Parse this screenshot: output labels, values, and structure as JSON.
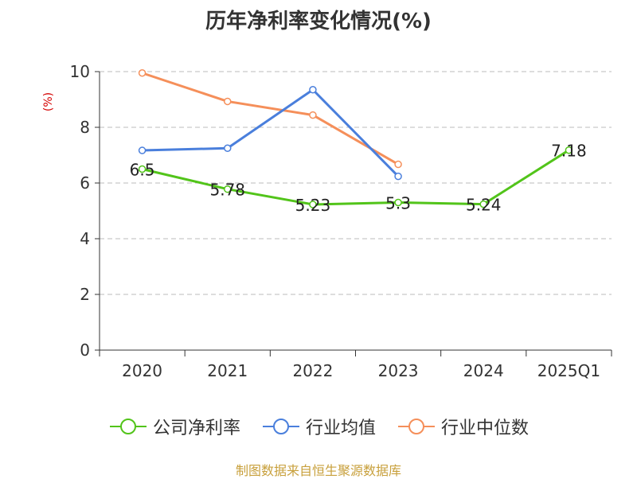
{
  "title": "历年净利率变化情况(%)",
  "footer": "制图数据来自恒生聚源数据库",
  "chart_data": {
    "type": "line",
    "title": "历年净利率变化情况(%)",
    "ylabel": "(%)",
    "xlabel": "",
    "categories": [
      "2020",
      "2021",
      "2022",
      "2023",
      "2024",
      "2025Q1"
    ],
    "ylim": [
      0,
      10
    ],
    "yticks": [
      0,
      2,
      4,
      6,
      8,
      10
    ],
    "grid": true,
    "legend_position": "bottom",
    "series": [
      {
        "name": "公司净利率",
        "color": "#52c41a",
        "values": [
          6.5,
          5.78,
          5.23,
          5.3,
          5.24,
          7.18
        ],
        "labels": [
          "6.5",
          "5.78",
          "5.23",
          "5.3",
          "5.24",
          "7.18"
        ]
      },
      {
        "name": "行业均值",
        "color": "#4a7fdc",
        "values": [
          7.17,
          7.25,
          9.35,
          6.24,
          null,
          null
        ]
      },
      {
        "name": "行业中位数",
        "color": "#f58f5a",
        "values": [
          9.95,
          8.93,
          8.44,
          6.67,
          null,
          null
        ]
      }
    ]
  }
}
